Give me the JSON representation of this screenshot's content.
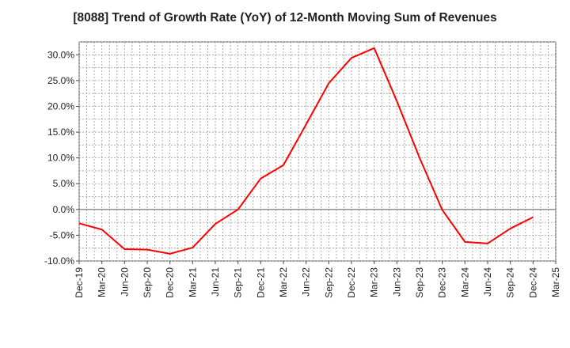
{
  "chart_data": {
    "type": "line",
    "title": "[8088]  Trend of Growth Rate (YoY) of 12-Month Moving Sum of Revenues",
    "xlabel": "",
    "ylabel": "",
    "ylim": [
      -10,
      32.5
    ],
    "y_ticks": [
      -10,
      -5,
      0,
      5,
      10,
      15,
      20,
      25,
      30
    ],
    "y_tick_labels": [
      "-10.0%",
      "-5.0%",
      "0.0%",
      "5.0%",
      "10.0%",
      "15.0%",
      "20.0%",
      "25.0%",
      "30.0%"
    ],
    "x_tick_labels": [
      "Dec-19",
      "Mar-20",
      "Jun-20",
      "Sep-20",
      "Dec-20",
      "Mar-21",
      "Jun-21",
      "Sep-21",
      "Dec-21",
      "Mar-22",
      "Jun-22",
      "Sep-22",
      "Dec-22",
      "Mar-23",
      "Jun-23",
      "Sep-23",
      "Dec-23",
      "Mar-24",
      "Jun-24",
      "Sep-24",
      "Dec-24",
      "Mar-25"
    ],
    "grid": true,
    "color": "#ff0000",
    "series": [
      {
        "name": "",
        "x": [
          "Dec-19",
          "Mar-20",
          "Jun-20",
          "Sep-20",
          "Dec-20",
          "Mar-21",
          "Jun-21",
          "Sep-21",
          "Dec-21",
          "Mar-22",
          "Jun-22",
          "Sep-22",
          "Dec-22",
          "Mar-23",
          "Jun-23",
          "Sep-23",
          "Dec-23",
          "Mar-24",
          "Jun-24",
          "Sep-24",
          "Dec-24"
        ],
        "values": [
          -2.7,
          -3.9,
          -7.7,
          -7.8,
          -8.6,
          -7.4,
          -2.8,
          0.0,
          6.0,
          8.6,
          16.5,
          24.5,
          29.4,
          31.3,
          21.0,
          10.0,
          -0.1,
          -6.3,
          -6.6,
          -3.7,
          -1.5
        ]
      }
    ]
  }
}
